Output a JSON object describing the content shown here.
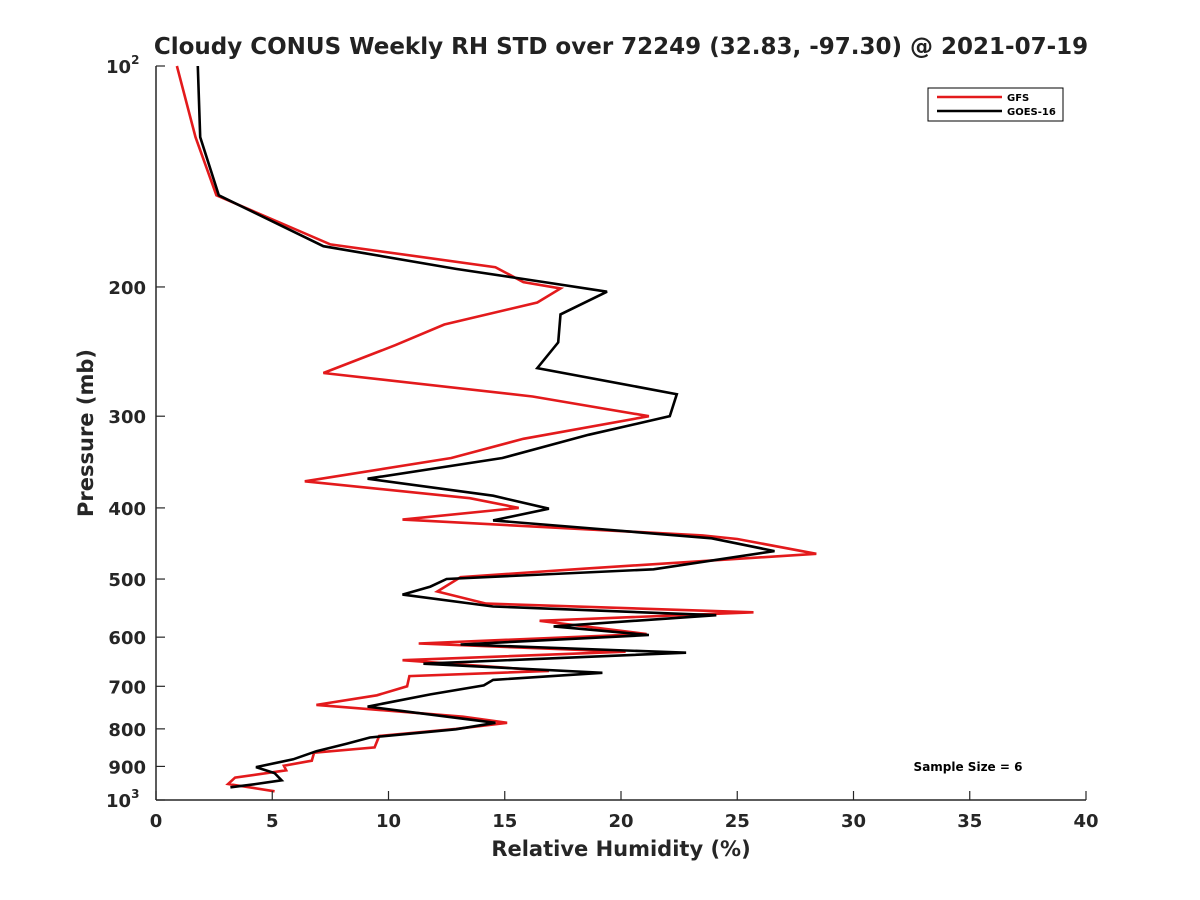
{
  "chart_data": {
    "type": "line",
    "title": "Cloudy CONUS Weekly RH STD over 72249 (32.83, -97.30) @ 2021-07-19",
    "xlabel": "Relative Humidity (%)",
    "ylabel": "Pressure (mb)",
    "xlim": [
      0,
      40
    ],
    "ylim": [
      100,
      1000
    ],
    "yscale": "log",
    "y_reversed": true,
    "x_ticks": [
      "0",
      "5",
      "10",
      "15",
      "20",
      "25",
      "30",
      "35",
      "40"
    ],
    "y_ticks": [
      {
        "value": 100,
        "base": "10",
        "exp": "2"
      },
      {
        "value": 200,
        "label": "200"
      },
      {
        "value": 300,
        "label": "300"
      },
      {
        "value": 400,
        "label": "400"
      },
      {
        "value": 500,
        "label": "500"
      },
      {
        "value": 600,
        "label": "600"
      },
      {
        "value": 700,
        "label": "700"
      },
      {
        "value": 800,
        "label": "800"
      },
      {
        "value": 900,
        "label": "900"
      },
      {
        "value": 1000,
        "base": "10",
        "exp": "3"
      }
    ],
    "grid": false,
    "legend_position": "top-right",
    "annotation": "Sample Size = 6",
    "series": [
      {
        "name": "GFS",
        "color": "#e31a1c",
        "points": [
          [
            0.9,
            100
          ],
          [
            1.7,
            125
          ],
          [
            2.6,
            150
          ],
          [
            7.5,
            175
          ],
          [
            14.6,
            188
          ],
          [
            15.8,
            197
          ],
          [
            17.4,
            201
          ],
          [
            16.4,
            210
          ],
          [
            12.4,
            225
          ],
          [
            10.3,
            240
          ],
          [
            7.2,
            262
          ],
          [
            16.2,
            282
          ],
          [
            21.2,
            300
          ],
          [
            15.8,
            322
          ],
          [
            12.7,
            342
          ],
          [
            6.4,
            368
          ],
          [
            13.5,
            388
          ],
          [
            15.6,
            400
          ],
          [
            10.6,
            415
          ],
          [
            23.5,
            436
          ],
          [
            25.0,
            441
          ],
          [
            28.4,
            462
          ],
          [
            18.4,
            484
          ],
          [
            13.1,
            497
          ],
          [
            12.1,
            520
          ],
          [
            14.2,
            540
          ],
          [
            25.7,
            555
          ],
          [
            16.5,
            570
          ],
          [
            21.1,
            594
          ],
          [
            11.3,
            612
          ],
          [
            20.2,
            628
          ],
          [
            10.6,
            645
          ],
          [
            16.9,
            667
          ],
          [
            10.9,
            678
          ],
          [
            10.8,
            700
          ],
          [
            9.5,
            720
          ],
          [
            6.9,
            742
          ],
          [
            13.2,
            770
          ],
          [
            15.1,
            785
          ],
          [
            12.9,
            800
          ],
          [
            9.6,
            818
          ],
          [
            9.4,
            848
          ],
          [
            6.8,
            862
          ],
          [
            6.7,
            884
          ],
          [
            5.5,
            898
          ],
          [
            5.6,
            911
          ],
          [
            3.4,
            932
          ],
          [
            3.1,
            951
          ],
          [
            5.1,
            973
          ]
        ]
      },
      {
        "name": "GOES-16",
        "color": "#000000",
        "points": [
          [
            1.8,
            100
          ],
          [
            1.9,
            125
          ],
          [
            2.7,
            150
          ],
          [
            7.2,
            176
          ],
          [
            12.9,
            189
          ],
          [
            16.7,
            197
          ],
          [
            19.4,
            203
          ],
          [
            17.4,
            218
          ],
          [
            17.3,
            238
          ],
          [
            16.4,
            258
          ],
          [
            22.4,
            280
          ],
          [
            22.1,
            300
          ],
          [
            18.6,
            318
          ],
          [
            14.9,
            342
          ],
          [
            9.1,
            365
          ],
          [
            14.5,
            385
          ],
          [
            16.9,
            401
          ],
          [
            14.5,
            416
          ],
          [
            23.9,
            440
          ],
          [
            26.6,
            458
          ],
          [
            21.4,
            485
          ],
          [
            12.5,
            500
          ],
          [
            11.8,
            512
          ],
          [
            10.6,
            525
          ],
          [
            14.5,
            545
          ],
          [
            24.1,
            560
          ],
          [
            17.1,
            580
          ],
          [
            21.2,
            596
          ],
          [
            13.1,
            614
          ],
          [
            22.8,
            630
          ],
          [
            11.5,
            652
          ],
          [
            19.2,
            671
          ],
          [
            14.5,
            686
          ],
          [
            14.1,
            698
          ],
          [
            11.8,
            718
          ],
          [
            9.1,
            746
          ],
          [
            14.6,
            785
          ],
          [
            12.9,
            801
          ],
          [
            9.2,
            822
          ],
          [
            8.2,
            838
          ],
          [
            6.9,
            858
          ],
          [
            5.9,
            880
          ],
          [
            4.3,
            902
          ],
          [
            5.1,
            919
          ],
          [
            5.4,
            940
          ],
          [
            4.3,
            951
          ],
          [
            3.2,
            961
          ]
        ]
      }
    ]
  }
}
